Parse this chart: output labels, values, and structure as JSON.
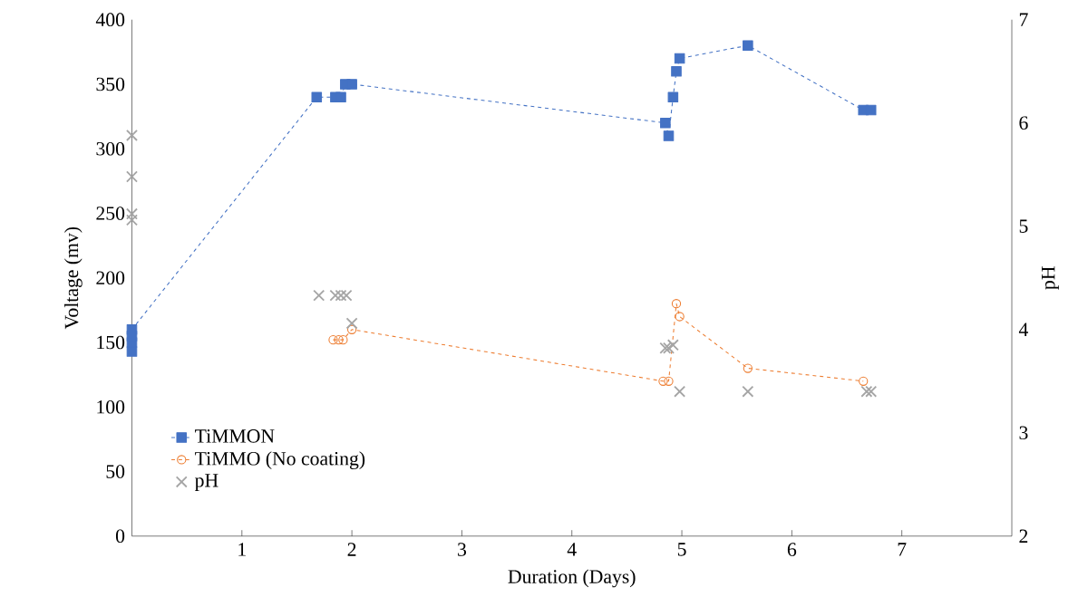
{
  "chart_data": {
    "type": "line",
    "xlabel": "Duration (Days)",
    "ylabel": "Voltage (mv)",
    "y2label": "pH",
    "xlim": [
      0,
      8
    ],
    "xticks": [
      1,
      2,
      3,
      4,
      5,
      6,
      7
    ],
    "ylim": [
      0,
      400
    ],
    "yticks": [
      0,
      50,
      100,
      150,
      200,
      250,
      300,
      350,
      400
    ],
    "y2lim": [
      2,
      7
    ],
    "y2ticks": [
      2,
      3,
      4,
      5,
      6,
      7
    ],
    "legend": "bottom left",
    "grid": false,
    "series": [
      {
        "name": "TiMMON",
        "color": "#4472c4",
        "marker": "square",
        "line_style": "dashed",
        "x": [
          0,
          0,
          0,
          0,
          1.68,
          1.85,
          1.9,
          1.94,
          2.0,
          4.85,
          4.88,
          4.92,
          4.95,
          4.98,
          5.6,
          6.65,
          6.72
        ],
        "values": [
          143,
          150,
          155,
          160,
          340,
          340,
          340,
          350,
          350,
          320,
          310,
          340,
          360,
          370,
          380,
          330,
          330
        ]
      },
      {
        "name": "TiMMO (No coating)",
        "color": "#ed7d31",
        "marker": "circle",
        "line_style": "dashed",
        "x": [
          1.83,
          1.88,
          1.92,
          2.0,
          4.83,
          4.88,
          4.95,
          4.98,
          5.6,
          6.65
        ],
        "values": [
          152,
          152,
          152,
          160,
          120,
          120,
          180,
          170,
          130,
          120
        ]
      },
      {
        "name": "pH",
        "type": "scatter",
        "axis": "y2",
        "color": "#a5a5a5",
        "marker": "cross",
        "x": [
          0,
          0,
          0,
          0,
          1.7,
          1.85,
          1.9,
          1.95,
          2.0,
          4.85,
          4.88,
          4.92,
          4.98,
          5.6,
          6.68,
          6.72
        ],
        "values": [
          5.88,
          5.48,
          5.12,
          5.06,
          4.33,
          4.33,
          4.33,
          4.33,
          4.06,
          3.82,
          3.82,
          3.85,
          3.4,
          3.4,
          3.4,
          3.4
        ]
      }
    ]
  }
}
